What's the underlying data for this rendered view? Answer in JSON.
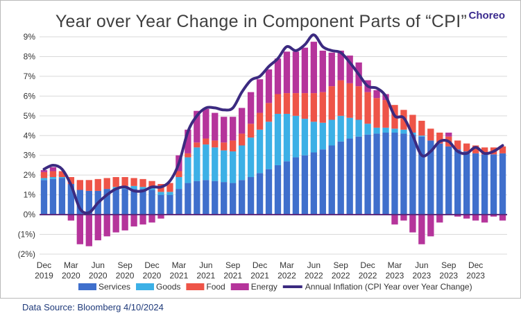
{
  "title": "Year over Year Change in Component Parts of “CPI”",
  "brand": "Choreo",
  "source": "Data Source: Bloomberg 4/10/2024",
  "colors": {
    "services": "#3f6fcc",
    "goods": "#3cb0e6",
    "food": "#ee5448",
    "energy": "#b5349b",
    "inflation": "#3b2a80",
    "zero_line": "#5b2478",
    "grid": "#d9d9d9",
    "negative_label": "#c00000"
  },
  "chart_data": {
    "type": "bar",
    "stacked": true,
    "title": "Year over Year Change in Component Parts of “CPI”",
    "ylim": [
      -2,
      9
    ],
    "y_ticks": [
      {
        "value": 9,
        "label": "9%"
      },
      {
        "value": 8,
        "label": "8%"
      },
      {
        "value": 7,
        "label": "7%"
      },
      {
        "value": 6,
        "label": "6%"
      },
      {
        "value": 5,
        "label": "5%"
      },
      {
        "value": 4,
        "label": "4%"
      },
      {
        "value": 3,
        "label": "3%"
      },
      {
        "value": 2,
        "label": "2%"
      },
      {
        "value": 1,
        "label": "1%"
      },
      {
        "value": 0,
        "label": "0%"
      },
      {
        "value": -1,
        "label": "(1%)"
      },
      {
        "value": -2,
        "label": "(2%)"
      }
    ],
    "x_ticks": [
      {
        "index": 0,
        "month": "Dec",
        "year": "2019"
      },
      {
        "index": 3,
        "month": "Mar",
        "year": "2020"
      },
      {
        "index": 6,
        "month": "Jun",
        "year": "2020"
      },
      {
        "index": 9,
        "month": "Sep",
        "year": "2020"
      },
      {
        "index": 12,
        "month": "Dec",
        "year": "2020"
      },
      {
        "index": 15,
        "month": "Mar",
        "year": "2021"
      },
      {
        "index": 18,
        "month": "Jun",
        "year": "2021"
      },
      {
        "index": 21,
        "month": "Sep",
        "year": "2021"
      },
      {
        "index": 24,
        "month": "Dec",
        "year": "2021"
      },
      {
        "index": 27,
        "month": "Mar",
        "year": "2022"
      },
      {
        "index": 30,
        "month": "Jun",
        "year": "2022"
      },
      {
        "index": 33,
        "month": "Sep",
        "year": "2022"
      },
      {
        "index": 36,
        "month": "Dec",
        "year": "2022"
      },
      {
        "index": 39,
        "month": "Mar",
        "year": "2023"
      },
      {
        "index": 42,
        "month": "Jun",
        "year": "2023"
      },
      {
        "index": 45,
        "month": "Sep",
        "year": "2023"
      },
      {
        "index": 48,
        "month": "Dec",
        "year": "2023"
      }
    ],
    "periods": [
      "Dec 2019",
      "Jan 2020",
      "Feb 2020",
      "Mar 2020",
      "Apr 2020",
      "May 2020",
      "Jun 2020",
      "Jul 2020",
      "Aug 2020",
      "Sep 2020",
      "Oct 2020",
      "Nov 2020",
      "Dec 2020",
      "Jan 2021",
      "Feb 2021",
      "Mar 2021",
      "Apr 2021",
      "May 2021",
      "Jun 2021",
      "Jul 2021",
      "Aug 2021",
      "Sep 2021",
      "Oct 2021",
      "Nov 2021",
      "Dec 2021",
      "Jan 2022",
      "Feb 2022",
      "Mar 2022",
      "Apr 2022",
      "May 2022",
      "Jun 2022",
      "Jul 2022",
      "Aug 2022",
      "Sep 2022",
      "Oct 2022",
      "Nov 2022",
      "Dec 2022",
      "Jan 2023",
      "Feb 2023",
      "Mar 2023",
      "Apr 2023",
      "May 2023",
      "Jun 2023",
      "Jul 2023",
      "Aug 2023",
      "Sep 2023",
      "Oct 2023",
      "Nov 2023",
      "Dec 2023",
      "Jan 2024",
      "Feb 2024",
      "Mar 2024"
    ],
    "series": [
      {
        "name": "Services",
        "key": "services",
        "kind": "bar",
        "values": [
          1.75,
          1.8,
          1.85,
          1.55,
          1.25,
          1.2,
          1.2,
          1.3,
          1.3,
          1.3,
          1.3,
          1.3,
          1.25,
          1.0,
          1.0,
          1.3,
          1.6,
          1.7,
          1.75,
          1.7,
          1.65,
          1.6,
          1.75,
          1.9,
          2.1,
          2.3,
          2.5,
          2.7,
          2.9,
          3.0,
          3.15,
          3.3,
          3.5,
          3.7,
          3.85,
          3.95,
          4.05,
          4.1,
          4.15,
          4.15,
          4.1,
          4.05,
          3.95,
          3.75,
          3.6,
          3.45,
          3.3,
          3.2,
          3.1,
          3.05,
          3.05,
          3.1
        ]
      },
      {
        "name": "Goods",
        "key": "goods",
        "kind": "bar",
        "values": [
          0.1,
          0.1,
          0.05,
          0.0,
          0.0,
          0.0,
          0.0,
          0.0,
          0.1,
          0.15,
          0.15,
          0.1,
          0.1,
          0.15,
          0.15,
          0.6,
          1.3,
          1.7,
          1.8,
          1.7,
          1.6,
          1.6,
          1.75,
          2.0,
          2.2,
          2.4,
          2.6,
          2.4,
          2.1,
          1.85,
          1.55,
          1.35,
          1.3,
          1.3,
          1.05,
          0.85,
          0.55,
          0.3,
          0.25,
          0.2,
          0.2,
          0.1,
          0.05,
          0.0,
          0.0,
          0.0,
          0.0,
          0.0,
          0.0,
          0.0,
          0.0,
          0.0
        ]
      },
      {
        "name": "Food",
        "key": "food",
        "kind": "bar",
        "values": [
          0.3,
          0.3,
          0.3,
          0.35,
          0.5,
          0.55,
          0.6,
          0.55,
          0.5,
          0.45,
          0.4,
          0.4,
          0.35,
          0.4,
          0.45,
          0.3,
          0.2,
          0.25,
          0.3,
          0.35,
          0.4,
          0.55,
          0.6,
          0.7,
          0.85,
          0.95,
          1.0,
          1.05,
          1.15,
          1.3,
          1.45,
          1.55,
          1.7,
          1.8,
          1.75,
          1.7,
          1.6,
          1.5,
          1.4,
          1.2,
          1.0,
          0.9,
          0.75,
          0.6,
          0.55,
          0.5,
          0.45,
          0.4,
          0.4,
          0.35,
          0.35,
          0.35
        ]
      },
      {
        "name": "Energy",
        "key": "energy",
        "kind": "bar",
        "values": [
          0.1,
          0.2,
          0.0,
          -0.3,
          -1.5,
          -1.6,
          -1.3,
          -1.1,
          -0.9,
          -0.8,
          -0.6,
          -0.5,
          -0.4,
          -0.2,
          0.0,
          0.8,
          1.2,
          1.6,
          1.5,
          1.4,
          1.3,
          1.2,
          1.3,
          1.6,
          1.7,
          1.7,
          1.8,
          2.1,
          2.1,
          2.3,
          2.6,
          2.1,
          1.7,
          1.5,
          1.4,
          1.2,
          0.6,
          0.4,
          0.3,
          -0.5,
          -0.3,
          -0.9,
          -1.5,
          -1.1,
          -0.4,
          0.2,
          -0.1,
          -0.2,
          -0.3,
          -0.4,
          -0.1,
          -0.3
        ]
      },
      {
        "name": "Annual Inflation (CPI Year over Year Change)",
        "key": "inflation",
        "kind": "line",
        "values": [
          2.3,
          2.5,
          2.3,
          1.5,
          0.3,
          0.1,
          0.6,
          1.0,
          1.3,
          1.4,
          1.2,
          1.2,
          1.4,
          1.4,
          1.7,
          2.6,
          4.2,
          5.0,
          5.4,
          5.4,
          5.3,
          5.4,
          6.2,
          6.8,
          7.0,
          7.5,
          7.9,
          8.5,
          8.3,
          8.6,
          9.1,
          8.5,
          8.3,
          8.2,
          7.7,
          7.1,
          6.5,
          6.4,
          6.0,
          5.0,
          4.9,
          4.0,
          3.0,
          3.2,
          3.7,
          3.7,
          3.2,
          3.1,
          3.4,
          3.1,
          3.2,
          3.5
        ]
      }
    ],
    "legend": {
      "position": "bottom",
      "entries": [
        {
          "key": "services",
          "label": "Services"
        },
        {
          "key": "goods",
          "label": "Goods"
        },
        {
          "key": "food",
          "label": "Food"
        },
        {
          "key": "energy",
          "label": "Energy"
        },
        {
          "key": "inflation",
          "label": "Annual Inflation (CPI Year over Year Change)"
        }
      ]
    },
    "grid": true
  }
}
